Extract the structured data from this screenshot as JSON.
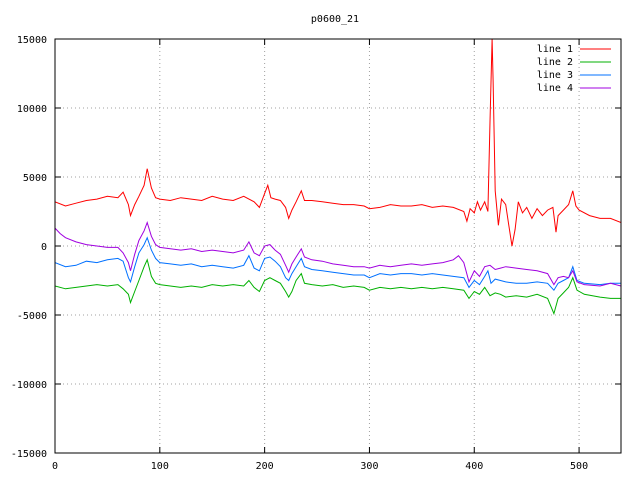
{
  "chart_data": {
    "type": "line",
    "title": "p0600_21",
    "xlim": [
      0,
      540
    ],
    "ylim": [
      -15000,
      15000
    ],
    "xticks": [
      0,
      100,
      200,
      300,
      400,
      500
    ],
    "yticks": [
      -15000,
      -10000,
      -5000,
      0,
      5000,
      10000,
      15000
    ],
    "grid": true,
    "legend_position": "top-right",
    "series": [
      {
        "name": "line 1",
        "color": "#ff0000",
        "points": [
          [
            0,
            3200
          ],
          [
            10,
            2900
          ],
          [
            20,
            3100
          ],
          [
            30,
            3300
          ],
          [
            40,
            3400
          ],
          [
            50,
            3600
          ],
          [
            60,
            3500
          ],
          [
            65,
            3900
          ],
          [
            70,
            3000
          ],
          [
            72,
            2200
          ],
          [
            76,
            3000
          ],
          [
            80,
            3600
          ],
          [
            85,
            4400
          ],
          [
            88,
            5600
          ],
          [
            92,
            4200
          ],
          [
            96,
            3500
          ],
          [
            100,
            3400
          ],
          [
            110,
            3300
          ],
          [
            120,
            3500
          ],
          [
            130,
            3400
          ],
          [
            140,
            3300
          ],
          [
            150,
            3600
          ],
          [
            160,
            3400
          ],
          [
            170,
            3300
          ],
          [
            180,
            3600
          ],
          [
            190,
            3200
          ],
          [
            195,
            2800
          ],
          [
            200,
            3800
          ],
          [
            203,
            4400
          ],
          [
            206,
            3500
          ],
          [
            210,
            3400
          ],
          [
            215,
            3300
          ],
          [
            220,
            2800
          ],
          [
            223,
            2000
          ],
          [
            226,
            2600
          ],
          [
            230,
            3200
          ],
          [
            235,
            4000
          ],
          [
            238,
            3300
          ],
          [
            245,
            3300
          ],
          [
            255,
            3200
          ],
          [
            265,
            3100
          ],
          [
            275,
            3000
          ],
          [
            285,
            3000
          ],
          [
            295,
            2900
          ],
          [
            300,
            2700
          ],
          [
            310,
            2800
          ],
          [
            320,
            3000
          ],
          [
            330,
            2900
          ],
          [
            340,
            2900
          ],
          [
            350,
            3000
          ],
          [
            360,
            2800
          ],
          [
            370,
            2900
          ],
          [
            380,
            2800
          ],
          [
            390,
            2500
          ],
          [
            393,
            1800
          ],
          [
            396,
            2700
          ],
          [
            400,
            2400
          ],
          [
            403,
            3200
          ],
          [
            406,
            2600
          ],
          [
            410,
            3200
          ],
          [
            413,
            2500
          ],
          [
            415,
            9000
          ],
          [
            417,
            15000
          ],
          [
            418,
            12000
          ],
          [
            420,
            4000
          ],
          [
            423,
            1500
          ],
          [
            426,
            3400
          ],
          [
            430,
            3000
          ],
          [
            433,
            1500
          ],
          [
            436,
            0
          ],
          [
            439,
            1200
          ],
          [
            442,
            3200
          ],
          [
            446,
            2400
          ],
          [
            450,
            2800
          ],
          [
            455,
            2000
          ],
          [
            460,
            2700
          ],
          [
            465,
            2200
          ],
          [
            470,
            2600
          ],
          [
            475,
            2800
          ],
          [
            478,
            1000
          ],
          [
            480,
            2200
          ],
          [
            485,
            2600
          ],
          [
            490,
            3000
          ],
          [
            494,
            4000
          ],
          [
            497,
            2900
          ],
          [
            500,
            2600
          ],
          [
            510,
            2200
          ],
          [
            520,
            2000
          ],
          [
            530,
            2000
          ],
          [
            540,
            1700
          ]
        ]
      },
      {
        "name": "line 2",
        "color": "#00b000",
        "points": [
          [
            0,
            -2900
          ],
          [
            10,
            -3100
          ],
          [
            20,
            -3000
          ],
          [
            30,
            -2900
          ],
          [
            40,
            -2800
          ],
          [
            50,
            -2900
          ],
          [
            60,
            -2800
          ],
          [
            65,
            -3100
          ],
          [
            70,
            -3500
          ],
          [
            72,
            -4100
          ],
          [
            76,
            -3300
          ],
          [
            80,
            -2500
          ],
          [
            85,
            -1500
          ],
          [
            88,
            -1000
          ],
          [
            92,
            -2200
          ],
          [
            96,
            -2700
          ],
          [
            100,
            -2800
          ],
          [
            110,
            -2900
          ],
          [
            120,
            -3000
          ],
          [
            130,
            -2900
          ],
          [
            140,
            -3000
          ],
          [
            150,
            -2800
          ],
          [
            160,
            -2900
          ],
          [
            170,
            -2800
          ],
          [
            180,
            -2900
          ],
          [
            185,
            -2500
          ],
          [
            190,
            -3000
          ],
          [
            195,
            -3300
          ],
          [
            200,
            -2500
          ],
          [
            205,
            -2300
          ],
          [
            210,
            -2500
          ],
          [
            215,
            -2700
          ],
          [
            220,
            -3300
          ],
          [
            223,
            -3700
          ],
          [
            226,
            -3300
          ],
          [
            230,
            -2500
          ],
          [
            235,
            -2000
          ],
          [
            238,
            -2700
          ],
          [
            245,
            -2800
          ],
          [
            255,
            -2900
          ],
          [
            265,
            -2800
          ],
          [
            275,
            -3000
          ],
          [
            285,
            -2900
          ],
          [
            295,
            -3000
          ],
          [
            300,
            -3200
          ],
          [
            310,
            -3000
          ],
          [
            320,
            -3100
          ],
          [
            330,
            -3000
          ],
          [
            340,
            -3100
          ],
          [
            350,
            -3000
          ],
          [
            360,
            -3100
          ],
          [
            370,
            -3000
          ],
          [
            380,
            -3100
          ],
          [
            390,
            -3200
          ],
          [
            395,
            -3800
          ],
          [
            400,
            -3300
          ],
          [
            405,
            -3500
          ],
          [
            410,
            -3000
          ],
          [
            415,
            -3600
          ],
          [
            420,
            -3400
          ],
          [
            425,
            -3500
          ],
          [
            430,
            -3700
          ],
          [
            440,
            -3600
          ],
          [
            450,
            -3700
          ],
          [
            460,
            -3500
          ],
          [
            470,
            -3800
          ],
          [
            476,
            -4900
          ],
          [
            480,
            -3800
          ],
          [
            485,
            -3400
          ],
          [
            490,
            -3000
          ],
          [
            494,
            -2300
          ],
          [
            498,
            -3200
          ],
          [
            505,
            -3500
          ],
          [
            520,
            -3700
          ],
          [
            530,
            -3800
          ],
          [
            540,
            -3800
          ]
        ]
      },
      {
        "name": "line 3",
        "color": "#0070ff",
        "points": [
          [
            0,
            -1200
          ],
          [
            10,
            -1500
          ],
          [
            20,
            -1400
          ],
          [
            30,
            -1100
          ],
          [
            40,
            -1200
          ],
          [
            50,
            -1000
          ],
          [
            60,
            -900
          ],
          [
            65,
            -1100
          ],
          [
            70,
            -2300
          ],
          [
            72,
            -2600
          ],
          [
            76,
            -1500
          ],
          [
            80,
            -500
          ],
          [
            85,
            100
          ],
          [
            88,
            600
          ],
          [
            92,
            -300
          ],
          [
            96,
            -900
          ],
          [
            100,
            -1200
          ],
          [
            110,
            -1300
          ],
          [
            120,
            -1400
          ],
          [
            130,
            -1300
          ],
          [
            140,
            -1500
          ],
          [
            150,
            -1400
          ],
          [
            160,
            -1500
          ],
          [
            170,
            -1600
          ],
          [
            180,
            -1400
          ],
          [
            185,
            -700
          ],
          [
            190,
            -1600
          ],
          [
            195,
            -1800
          ],
          [
            200,
            -900
          ],
          [
            205,
            -800
          ],
          [
            210,
            -1100
          ],
          [
            215,
            -1500
          ],
          [
            220,
            -2300
          ],
          [
            223,
            -2500
          ],
          [
            226,
            -2000
          ],
          [
            230,
            -1500
          ],
          [
            235,
            -900
          ],
          [
            238,
            -1500
          ],
          [
            245,
            -1700
          ],
          [
            255,
            -1800
          ],
          [
            265,
            -1900
          ],
          [
            275,
            -2000
          ],
          [
            285,
            -2100
          ],
          [
            295,
            -2100
          ],
          [
            300,
            -2300
          ],
          [
            310,
            -2000
          ],
          [
            320,
            -2100
          ],
          [
            330,
            -2000
          ],
          [
            340,
            -2000
          ],
          [
            350,
            -2100
          ],
          [
            360,
            -2000
          ],
          [
            370,
            -2100
          ],
          [
            380,
            -2200
          ],
          [
            390,
            -2300
          ],
          [
            395,
            -3000
          ],
          [
            400,
            -2500
          ],
          [
            405,
            -2800
          ],
          [
            410,
            -2200
          ],
          [
            413,
            -1800
          ],
          [
            416,
            -2700
          ],
          [
            420,
            -2400
          ],
          [
            430,
            -2600
          ],
          [
            440,
            -2700
          ],
          [
            450,
            -2700
          ],
          [
            460,
            -2600
          ],
          [
            470,
            -2700
          ],
          [
            476,
            -3200
          ],
          [
            480,
            -2700
          ],
          [
            485,
            -2500
          ],
          [
            490,
            -2300
          ],
          [
            494,
            -1500
          ],
          [
            498,
            -2500
          ],
          [
            505,
            -2700
          ],
          [
            520,
            -2800
          ],
          [
            530,
            -2700
          ],
          [
            540,
            -2700
          ]
        ]
      },
      {
        "name": "line 4",
        "color": "#a000e0",
        "points": [
          [
            0,
            1300
          ],
          [
            5,
            900
          ],
          [
            10,
            600
          ],
          [
            20,
            300
          ],
          [
            30,
            100
          ],
          [
            40,
            0
          ],
          [
            50,
            -100
          ],
          [
            60,
            -100
          ],
          [
            65,
            -500
          ],
          [
            70,
            -1200
          ],
          [
            72,
            -1800
          ],
          [
            76,
            -600
          ],
          [
            80,
            400
          ],
          [
            85,
            1100
          ],
          [
            88,
            1700
          ],
          [
            92,
            700
          ],
          [
            96,
            100
          ],
          [
            100,
            -100
          ],
          [
            110,
            -200
          ],
          [
            120,
            -300
          ],
          [
            130,
            -200
          ],
          [
            140,
            -400
          ],
          [
            150,
            -300
          ],
          [
            160,
            -400
          ],
          [
            170,
            -500
          ],
          [
            180,
            -300
          ],
          [
            185,
            300
          ],
          [
            190,
            -500
          ],
          [
            195,
            -700
          ],
          [
            200,
            0
          ],
          [
            205,
            100
          ],
          [
            210,
            -300
          ],
          [
            215,
            -600
          ],
          [
            220,
            -1400
          ],
          [
            223,
            -1900
          ],
          [
            226,
            -1300
          ],
          [
            230,
            -800
          ],
          [
            235,
            -200
          ],
          [
            238,
            -800
          ],
          [
            245,
            -1000
          ],
          [
            255,
            -1100
          ],
          [
            265,
            -1300
          ],
          [
            275,
            -1400
          ],
          [
            285,
            -1500
          ],
          [
            295,
            -1500
          ],
          [
            300,
            -1600
          ],
          [
            310,
            -1400
          ],
          [
            320,
            -1500
          ],
          [
            330,
            -1400
          ],
          [
            340,
            -1300
          ],
          [
            350,
            -1400
          ],
          [
            360,
            -1300
          ],
          [
            370,
            -1200
          ],
          [
            380,
            -1000
          ],
          [
            385,
            -700
          ],
          [
            390,
            -1200
          ],
          [
            395,
            -2600
          ],
          [
            400,
            -1800
          ],
          [
            405,
            -2200
          ],
          [
            410,
            -1500
          ],
          [
            415,
            -1400
          ],
          [
            420,
            -1700
          ],
          [
            425,
            -1600
          ],
          [
            430,
            -1500
          ],
          [
            440,
            -1600
          ],
          [
            450,
            -1700
          ],
          [
            460,
            -1800
          ],
          [
            470,
            -2000
          ],
          [
            476,
            -2800
          ],
          [
            480,
            -2300
          ],
          [
            485,
            -2200
          ],
          [
            490,
            -2300
          ],
          [
            494,
            -1800
          ],
          [
            498,
            -2600
          ],
          [
            505,
            -2800
          ],
          [
            520,
            -2900
          ],
          [
            530,
            -2700
          ],
          [
            540,
            -2900
          ]
        ]
      }
    ]
  }
}
